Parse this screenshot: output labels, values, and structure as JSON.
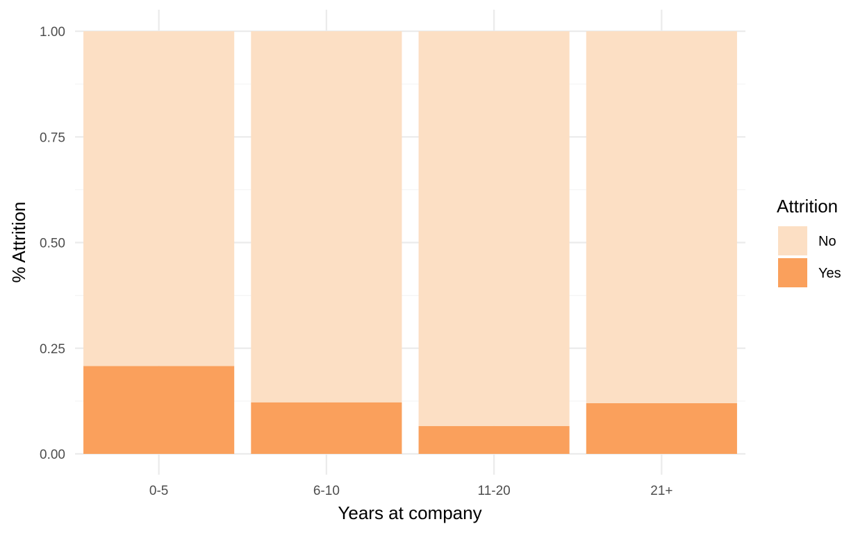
{
  "chart_data": {
    "type": "bar",
    "stacked": true,
    "categories": [
      "0-5",
      "6-10",
      "11-20",
      "21+"
    ],
    "series": [
      {
        "name": "No",
        "values": [
          0.792,
          0.878,
          0.934,
          0.88
        ],
        "color": "#FCDFC4"
      },
      {
        "name": "Yes",
        "values": [
          0.208,
          0.122,
          0.066,
          0.12
        ],
        "color": "#FAA05C"
      }
    ],
    "title": "",
    "xlabel": "Years at company",
    "ylabel": "% Attrition",
    "ylim": [
      0,
      1
    ],
    "yticks": [
      "0.00",
      "0.25",
      "0.50",
      "0.75",
      "1.00"
    ],
    "grid": true,
    "legend": {
      "title": "Attrition",
      "position": "right"
    },
    "colors": {
      "grid_major": "#EBEBEB",
      "grid_minor": "#F5F5F5"
    }
  }
}
